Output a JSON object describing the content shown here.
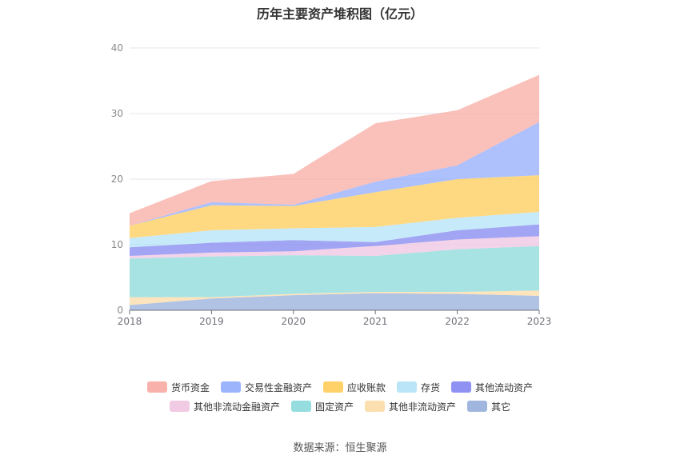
{
  "title": "历年主要资产堆积图（亿元）",
  "source": "数据来源：恒生聚源",
  "chart_data": {
    "type": "area",
    "stacked": true,
    "categories": [
      "2018",
      "2019",
      "2020",
      "2021",
      "2022",
      "2023"
    ],
    "ylim": [
      0,
      40
    ],
    "yticks": [
      0,
      10,
      20,
      30,
      40
    ],
    "grid": true,
    "legend_position": "bottom",
    "series": [
      {
        "name": "其它",
        "color": "#8fa9d8",
        "values": [
          0.8,
          1.8,
          2.3,
          2.6,
          2.5,
          2.2
        ]
      },
      {
        "name": "其他非流动资产",
        "color": "#fcd9a0",
        "values": [
          1.2,
          0.2,
          0.2,
          0.2,
          0.3,
          0.8
        ]
      },
      {
        "name": "固定资产",
        "color": "#83d7d8",
        "values": [
          5.9,
          6.2,
          5.9,
          5.5,
          6.5,
          6.8
        ]
      },
      {
        "name": "其他非流动金融资产",
        "color": "#eec1df",
        "values": [
          0.4,
          0.6,
          0.6,
          1.5,
          1.5,
          1.5
        ]
      },
      {
        "name": "其他流动资产",
        "color": "#7b7ff0",
        "values": [
          1.3,
          1.5,
          1.7,
          0.6,
          1.4,
          1.8
        ]
      },
      {
        "name": "存货",
        "color": "#aee1f8",
        "values": [
          1.4,
          1.9,
          1.8,
          2.3,
          1.9,
          1.9
        ]
      },
      {
        "name": "应收账款",
        "color": "#ffc94d",
        "values": [
          1.9,
          3.8,
          3.4,
          5.3,
          5.9,
          5.6
        ]
      },
      {
        "name": "交易性金融资产",
        "color": "#8ba7fb",
        "values": [
          0.0,
          0.5,
          0.2,
          1.6,
          2.1,
          8.1
        ]
      },
      {
        "name": "货币资金",
        "color": "#f8a59c",
        "values": [
          1.9,
          3.2,
          4.7,
          8.9,
          8.4,
          7.2
        ]
      }
    ]
  },
  "legend_rows": [
    [
      "货币资金",
      "交易性金融资产",
      "应收账款",
      "存货",
      "其他流动资产"
    ],
    [
      "其他非流动金融资产",
      "固定资产",
      "其他非流动资产",
      "其它"
    ]
  ]
}
